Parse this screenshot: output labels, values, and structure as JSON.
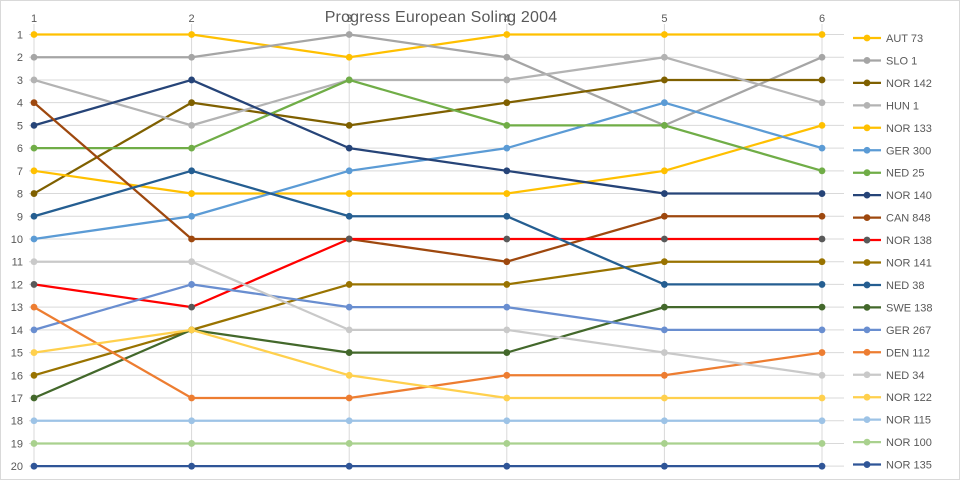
{
  "chart_data": {
    "type": "line",
    "subtype": "bump-rank-progress",
    "title": "Progress European Soling 2004",
    "x_tick_labels": [
      "1",
      "2",
      "3",
      "4",
      "5",
      "6"
    ],
    "y_tick_labels": [
      "1",
      "2",
      "3",
      "4",
      "5",
      "6",
      "7",
      "8",
      "9",
      "10",
      "11",
      "12",
      "13",
      "14",
      "15",
      "16",
      "17",
      "18",
      "19",
      "20"
    ],
    "ylim": [
      1,
      20
    ],
    "y_inverted": true,
    "grid": true,
    "legend_position": "right",
    "series": [
      {
        "name": "AUT 73",
        "color": "#FFC000",
        "marker_color": "#FFC000",
        "positions": [
          1,
          1,
          2,
          1,
          1,
          1
        ]
      },
      {
        "name": "SLO 1",
        "color": "#A5A5A5",
        "marker_color": "#A5A5A5",
        "positions": [
          2,
          2,
          1,
          2,
          5,
          2
        ]
      },
      {
        "name": "NOR 142",
        "color": "#7F6000",
        "marker_color": "#7F6000",
        "positions": [
          8,
          4,
          5,
          4,
          3,
          3
        ]
      },
      {
        "name": "HUN 1",
        "color": "#B3B3B3",
        "marker_color": "#B3B3B3",
        "positions": [
          3,
          5,
          3,
          3,
          2,
          4
        ]
      },
      {
        "name": "NOR 133",
        "color": "#FFC000",
        "marker_color": "#FFC000",
        "positions": [
          7,
          8,
          8,
          8,
          7,
          5
        ]
      },
      {
        "name": "GER 300",
        "color": "#5B9BD5",
        "marker_color": "#5B9BD5",
        "positions": [
          10,
          9,
          7,
          6,
          4,
          6
        ]
      },
      {
        "name": "NED 25",
        "color": "#70AD47",
        "marker_color": "#70AD47",
        "positions": [
          6,
          6,
          3,
          5,
          5,
          7
        ]
      },
      {
        "name": "NOR 140",
        "color": "#264478",
        "marker_color": "#264478",
        "positions": [
          5,
          3,
          6,
          7,
          8,
          8
        ]
      },
      {
        "name": "CAN 848",
        "color": "#9E480E",
        "marker_color": "#9E480E",
        "positions": [
          4,
          10,
          10,
          11,
          9,
          9
        ]
      },
      {
        "name": "NOR 138",
        "color": "#FF0000",
        "marker_color": "#595959",
        "positions": [
          12,
          13,
          10,
          10,
          10,
          10
        ]
      },
      {
        "name": "NOR 141",
        "color": "#997300",
        "marker_color": "#997300",
        "positions": [
          16,
          14,
          12,
          12,
          11,
          11
        ]
      },
      {
        "name": "NED 38",
        "color": "#255E91",
        "marker_color": "#255E91",
        "positions": [
          9,
          7,
          9,
          9,
          12,
          12
        ]
      },
      {
        "name": "SWE 138",
        "color": "#43682B",
        "marker_color": "#43682B",
        "positions": [
          17,
          14,
          15,
          15,
          13,
          13
        ]
      },
      {
        "name": "GER 267",
        "color": "#698ED0",
        "marker_color": "#698ED0",
        "positions": [
          14,
          12,
          13,
          13,
          14,
          14
        ]
      },
      {
        "name": "DEN 112",
        "color": "#ED7D31",
        "marker_color": "#ED7D31",
        "positions": [
          13,
          17,
          17,
          16,
          16,
          15
        ]
      },
      {
        "name": "NED 34",
        "color": "#C9C9C9",
        "marker_color": "#C9C9C9",
        "positions": [
          11,
          11,
          14,
          14,
          15,
          16
        ]
      },
      {
        "name": "NOR 122",
        "color": "#FFD04D",
        "marker_color": "#FFD04D",
        "positions": [
          15,
          14,
          16,
          17,
          17,
          17
        ]
      },
      {
        "name": "NOR 115",
        "color": "#9DC3E6",
        "marker_color": "#9DC3E6",
        "positions": [
          18,
          18,
          18,
          18,
          18,
          18
        ]
      },
      {
        "name": "NOR 100",
        "color": "#A9D18E",
        "marker_color": "#A9D18E",
        "positions": [
          19,
          19,
          19,
          19,
          19,
          19
        ]
      },
      {
        "name": "NOR 135",
        "color": "#2F5597",
        "marker_color": "#2F5597",
        "positions": [
          20,
          20,
          20,
          20,
          20,
          20
        ]
      }
    ]
  },
  "style": {
    "grid_color": "#D9D9D9",
    "tick_text_color": "#595959",
    "title_color": "#595959",
    "background": "#FFFFFF",
    "border_color": "#D9D9D9"
  }
}
